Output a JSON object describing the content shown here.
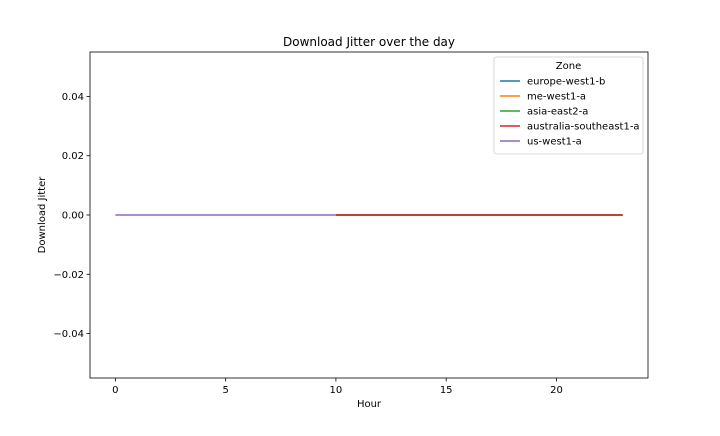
{
  "chart_data": {
    "type": "line",
    "title": "Download Jitter over the day",
    "xlabel": "Hour",
    "ylabel": "Download Jitter",
    "xlim": [
      -1.15,
      24.15
    ],
    "ylim": [
      -0.055,
      0.055
    ],
    "xticks": [
      0,
      5,
      10,
      15,
      20
    ],
    "xtick_labels": [
      "0",
      "5",
      "10",
      "15",
      "20"
    ],
    "yticks": [
      -0.04,
      -0.02,
      0.0,
      0.02,
      0.04
    ],
    "ytick_labels": [
      "−0.04",
      "−0.02",
      "0.00",
      "0.02",
      "0.04"
    ],
    "grid": false,
    "legend": {
      "title": "Zone",
      "placement": "top-right"
    },
    "series": [
      {
        "name": "europe-west1-b",
        "color": "#1f77b4",
        "x": [
          10,
          23
        ],
        "y": [
          0,
          0
        ]
      },
      {
        "name": "me-west1-a",
        "color": "#ff7f0e",
        "x": [
          10,
          23
        ],
        "y": [
          0,
          0
        ]
      },
      {
        "name": "asia-east2-a",
        "color": "#2ca02c",
        "x": [
          10,
          23
        ],
        "y": [
          0,
          0
        ]
      },
      {
        "name": "australia-southeast1-a",
        "color": "#d62728",
        "x": [
          10,
          23
        ],
        "y": [
          0,
          0
        ]
      },
      {
        "name": "us-west1-a",
        "color": "#9467bd",
        "x": [
          0,
          10
        ],
        "y": [
          0,
          0
        ]
      }
    ]
  }
}
